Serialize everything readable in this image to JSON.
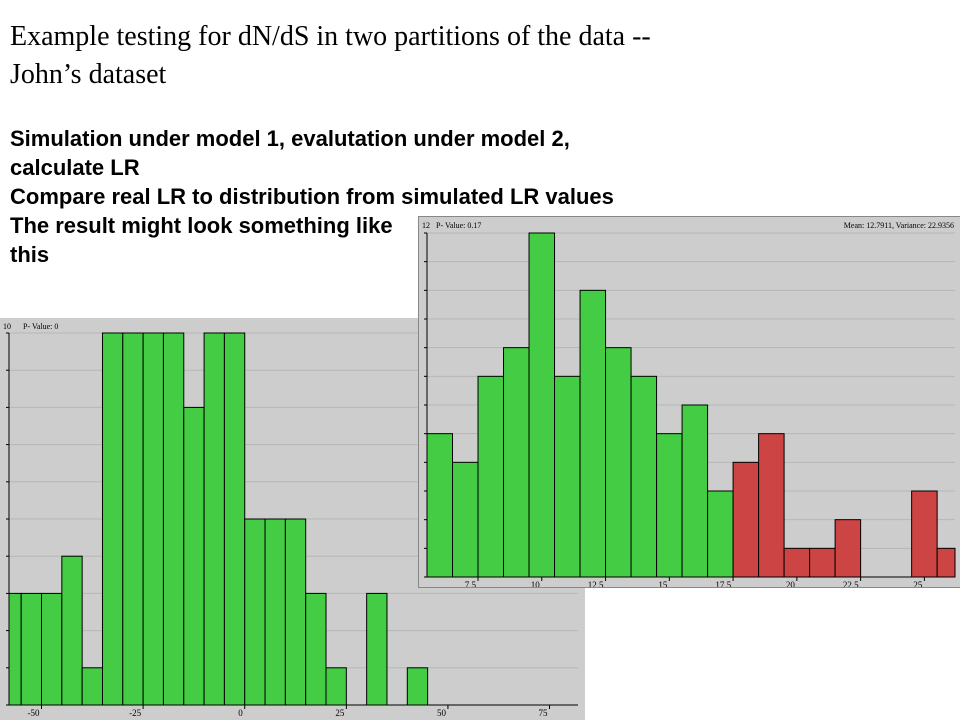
{
  "slide": {
    "title_line1": "Example testing for dN/dS in two partitions of the data --",
    "title_line2": "John’s dataset",
    "bullets": [
      "Simulation under model 1, evalutation under model 2,",
      "calculate LR",
      "Compare real LR to distribution from simulated LR values",
      "The result might look something like",
      "this"
    ]
  },
  "colors": {
    "green": "#44cc44",
    "red": "#cc4444",
    "panel": "#cdcdcd",
    "grid": "#b6b6b6"
  },
  "chart_data": [
    {
      "type": "bar",
      "header_left": "10",
      "pvalue_label": "P- Value: 0",
      "xlim": [
        -58,
        82
      ],
      "ylim": [
        0,
        10
      ],
      "bin_width": 5,
      "bin_starts": [
        -60,
        -55,
        -50,
        -45,
        -40,
        -35,
        -30,
        -25,
        -20,
        -15,
        -10,
        -5,
        0,
        5,
        10,
        15,
        20,
        25,
        30,
        35,
        40,
        45,
        50,
        55,
        60,
        65,
        70,
        75
      ],
      "values": [
        3,
        3,
        3,
        4,
        1,
        10,
        10,
        10,
        10,
        8,
        10,
        10,
        5,
        5,
        5,
        3,
        1,
        0,
        3,
        0,
        1,
        0,
        0,
        0,
        0,
        0,
        0,
        0
      ],
      "colors": [
        "green",
        "green",
        "green",
        "green",
        "green",
        "green",
        "green",
        "green",
        "green",
        "green",
        "green",
        "green",
        "green",
        "green",
        "green",
        "green",
        "green",
        "green",
        "green",
        "green",
        "green",
        "green",
        "green",
        "green",
        "green",
        "green",
        "green",
        "green"
      ],
      "xticks": [
        -50,
        -25,
        0,
        25,
        50,
        75
      ],
      "xticklabels": [
        "-50",
        "-25",
        "0",
        "25",
        "50",
        "75"
      ]
    },
    {
      "type": "bar",
      "header_left": "12",
      "pvalue_label": "P- Value: 0.17",
      "stats_label": "Mean: 12.7911, Variance: 22.9356",
      "xlim": [
        5.5,
        26.2
      ],
      "ylim": [
        0,
        12
      ],
      "bin_width": 1,
      "bin_starts": [
        5.5,
        6.5,
        7.5,
        8.5,
        9.5,
        10.5,
        11.5,
        12.5,
        13.5,
        14.5,
        15.5,
        16.5,
        17.5,
        18.5,
        19.5,
        20.5,
        21.5,
        22.5,
        23.5,
        24.5,
        25.5
      ],
      "values": [
        5,
        4,
        7,
        8,
        12,
        7,
        10,
        8,
        7,
        5,
        6,
        3,
        4,
        5,
        1,
        1,
        2,
        0,
        0,
        3,
        1
      ],
      "colors": [
        "green",
        "green",
        "green",
        "green",
        "green",
        "green",
        "green",
        "green",
        "green",
        "green",
        "green",
        "green",
        "red",
        "red",
        "red",
        "red",
        "red",
        "red",
        "red",
        "red",
        "red"
      ],
      "xticks": [
        7.5,
        10,
        12.5,
        15,
        17.5,
        20,
        22.5,
        25
      ],
      "xticklabels": [
        "7.5",
        "10",
        "12.5",
        "15",
        "17.5",
        "20",
        "22.5",
        "25"
      ]
    }
  ]
}
